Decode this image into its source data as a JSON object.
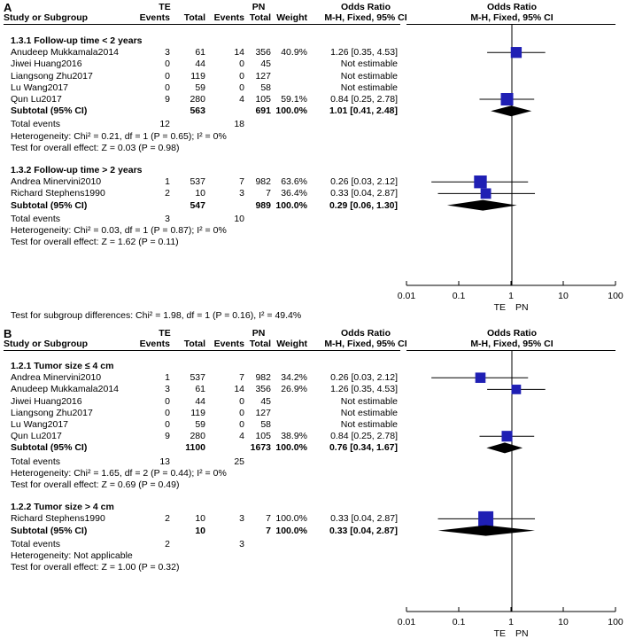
{
  "chart_data": [
    {
      "type": "forest",
      "panel": "A",
      "header": {
        "col_study": "Study or Subgroup",
        "g1": "TE",
        "g2": "PN",
        "events": "Events",
        "total": "Total",
        "weight": "Weight",
        "or_title": "Odds Ratio",
        "or_method": "M-H, Fixed, 95% CI",
        "plot_title": "Odds Ratio",
        "plot_method": "M-H, Fixed, 95% CI"
      },
      "axis": {
        "scale": "log",
        "ticks": [
          "0.01",
          "0.1",
          "1",
          "10",
          "100"
        ],
        "tick_values": [
          0.01,
          0.1,
          1,
          10,
          100
        ],
        "left_label": "TE",
        "right_label": "PN"
      },
      "subgroups": [
        {
          "title": "1.3.1 Follow-up time < 2 years",
          "studies": [
            {
              "name": "Anudeep Mukkamala2014",
              "e1": "3",
              "n1": "61",
              "e2": "14",
              "n2": "356",
              "weight": "40.9%",
              "ci": "1.26 [0.35, 4.53]",
              "or": 1.26,
              "lo": 0.35,
              "hi": 4.53,
              "w": 40.9
            },
            {
              "name": "Jiwei Huang2016",
              "e1": "0",
              "n1": "44",
              "e2": "0",
              "n2": "45",
              "weight": "",
              "ci": "Not estimable"
            },
            {
              "name": "Liangsong Zhu2017",
              "e1": "0",
              "n1": "119",
              "e2": "0",
              "n2": "127",
              "weight": "",
              "ci": "Not estimable"
            },
            {
              "name": "Lu Wang2017",
              "e1": "0",
              "n1": "59",
              "e2": "0",
              "n2": "58",
              "weight": "",
              "ci": "Not estimable"
            },
            {
              "name": "Qun Lu2017",
              "e1": "9",
              "n1": "280",
              "e2": "4",
              "n2": "105",
              "weight": "59.1%",
              "ci": "0.84 [0.25, 2.78]",
              "or": 0.84,
              "lo": 0.25,
              "hi": 2.78,
              "w": 59.1
            }
          ],
          "subtotal": {
            "label": "Subtotal (95% CI)",
            "n1": "563",
            "n2": "691",
            "weight": "100.0%",
            "ci": "1.01 [0.41, 2.48]",
            "or": 1.01,
            "lo": 0.41,
            "hi": 2.48
          },
          "total_events": {
            "label": "Total events",
            "e1": "12",
            "e2": "18"
          },
          "heterogeneity": "Heterogeneity: Chi² = 0.21, df = 1 (P = 0.65); I² = 0%",
          "overall": "Test for overall effect: Z = 0.03 (P = 0.98)"
        },
        {
          "title": "1.3.2 Follow-up time > 2 years",
          "studies": [
            {
              "name": "Andrea Minervini2010",
              "e1": "1",
              "n1": "537",
              "e2": "7",
              "n2": "982",
              "weight": "63.6%",
              "ci": "0.26 [0.03, 2.12]",
              "or": 0.26,
              "lo": 0.03,
              "hi": 2.12,
              "w": 63.6
            },
            {
              "name": "Richard Stephens1990",
              "e1": "2",
              "n1": "10",
              "e2": "3",
              "n2": "7",
              "weight": "36.4%",
              "ci": "0.33 [0.04, 2.87]",
              "or": 0.33,
              "lo": 0.04,
              "hi": 2.87,
              "w": 36.4
            }
          ],
          "subtotal": {
            "label": "Subtotal (95% CI)",
            "n1": "547",
            "n2": "989",
            "weight": "100.0%",
            "ci": "0.29 [0.06, 1.30]",
            "or": 0.29,
            "lo": 0.06,
            "hi": 1.3
          },
          "total_events": {
            "label": "Total events",
            "e1": "3",
            "e2": "10"
          },
          "heterogeneity": "Heterogeneity: Chi² = 0.03, df = 1 (P = 0.87); I² = 0%",
          "overall": "Test for overall effect: Z = 1.62 (P = 0.11)"
        }
      ],
      "footer": "Test for subgroup differences: Chi² = 1.98, df = 1 (P = 0.16), I² = 49.4%"
    },
    {
      "type": "forest",
      "panel": "B",
      "header": {
        "col_study": "Study or Subgroup",
        "g1": "TE",
        "g2": "PN",
        "events": "Events",
        "total": "Total",
        "weight": "Weight",
        "or_title": "Odds Ratio",
        "or_method": "M-H, Fixed, 95% CI",
        "plot_title": "Odds Ratio",
        "plot_method": "M-H, Fixed, 95% CI"
      },
      "axis": {
        "scale": "log",
        "ticks": [
          "0.01",
          "0.1",
          "1",
          "10",
          "100"
        ],
        "tick_values": [
          0.01,
          0.1,
          1,
          10,
          100
        ],
        "left_label": "TE",
        "right_label": "PN"
      },
      "subgroups": [
        {
          "title": "1.2.1 Tumor size ≤ 4 cm",
          "studies": [
            {
              "name": "Andrea Minervini2010",
              "e1": "1",
              "n1": "537",
              "e2": "7",
              "n2": "982",
              "weight": "34.2%",
              "ci": "0.26 [0.03, 2.12]",
              "or": 0.26,
              "lo": 0.03,
              "hi": 2.12,
              "w": 34.2
            },
            {
              "name": "Anudeep Mukkamala2014",
              "e1": "3",
              "n1": "61",
              "e2": "14",
              "n2": "356",
              "weight": "26.9%",
              "ci": "1.26 [0.35, 4.53]",
              "or": 1.26,
              "lo": 0.35,
              "hi": 4.53,
              "w": 26.9
            },
            {
              "name": "Jiwei Huang2016",
              "e1": "0",
              "n1": "44",
              "e2": "0",
              "n2": "45",
              "weight": "",
              "ci": "Not estimable"
            },
            {
              "name": "Liangsong Zhu2017",
              "e1": "0",
              "n1": "119",
              "e2": "0",
              "n2": "127",
              "weight": "",
              "ci": "Not estimable"
            },
            {
              "name": "Lu Wang2017",
              "e1": "0",
              "n1": "59",
              "e2": "0",
              "n2": "58",
              "weight": "",
              "ci": "Not estimable"
            },
            {
              "name": "Qun Lu2017",
              "e1": "9",
              "n1": "280",
              "e2": "4",
              "n2": "105",
              "weight": "38.9%",
              "ci": "0.84 [0.25, 2.78]",
              "or": 0.84,
              "lo": 0.25,
              "hi": 2.78,
              "w": 38.9
            }
          ],
          "subtotal": {
            "label": "Subtotal (95% CI)",
            "n1": "1100",
            "n2": "1673",
            "weight": "100.0%",
            "ci": "0.76 [0.34, 1.67]",
            "or": 0.76,
            "lo": 0.34,
            "hi": 1.67
          },
          "total_events": {
            "label": "Total events",
            "e1": "13",
            "e2": "25"
          },
          "heterogeneity": "Heterogeneity: Chi² = 1.65, df = 2 (P = 0.44); I² = 0%",
          "overall": "Test for overall effect: Z = 0.69 (P = 0.49)"
        },
        {
          "title": "1.2.2 Tumor size > 4 cm",
          "studies": [
            {
              "name": "Richard Stephens1990",
              "e1": "2",
              "n1": "10",
              "e2": "3",
              "n2": "7",
              "weight": "100.0%",
              "ci": "0.33 [0.04, 2.87]",
              "or": 0.33,
              "lo": 0.04,
              "hi": 2.87,
              "w": 100.0
            }
          ],
          "subtotal": {
            "label": "Subtotal (95% CI)",
            "n1": "10",
            "n2": "7",
            "weight": "100.0%",
            "ci": "0.33 [0.04, 2.87]",
            "or": 0.33,
            "lo": 0.04,
            "hi": 2.87
          },
          "total_events": {
            "label": "Total events",
            "e1": "2",
            "e2": "3"
          },
          "heterogeneity": "Heterogeneity: Not applicable",
          "overall": "Test for overall effect: Z = 1.00 (P = 0.32)"
        }
      ],
      "footer": ""
    }
  ],
  "colors": {
    "marker": "#1f1fb4",
    "diamond": "#000000",
    "line": "#000000"
  }
}
